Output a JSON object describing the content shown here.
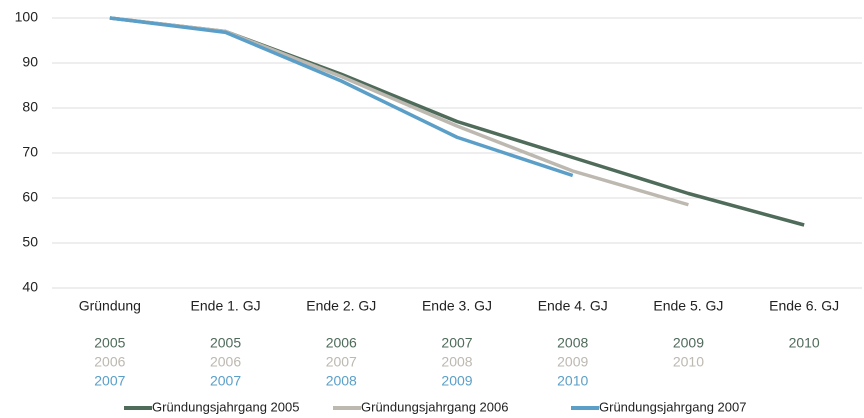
{
  "chart_data": {
    "type": "line",
    "categories": [
      "Gründung",
      "Ende 1. GJ",
      "Ende 2. GJ",
      "Ende 3. GJ",
      "Ende 4. GJ",
      "Ende 5. GJ",
      "Ende 6. GJ"
    ],
    "series": [
      {
        "name": "Gründungsjahrgang 2005",
        "color": "#4f6b5a",
        "values": [
          100,
          97,
          87.5,
          77,
          69,
          61,
          54
        ],
        "years": [
          2005,
          2005,
          2006,
          2007,
          2008,
          2009,
          2010
        ]
      },
      {
        "name": "Gründungsjahrgang 2006",
        "color": "#bdb8b0",
        "values": [
          100,
          97,
          87,
          76,
          66,
          58.5,
          null
        ],
        "years": [
          2006,
          2006,
          2007,
          2008,
          2009,
          2010,
          null
        ]
      },
      {
        "name": "Gründungsjahrgang 2007",
        "color": "#5b9fc8",
        "values": [
          100,
          96.8,
          86,
          73.5,
          65,
          null,
          null
        ],
        "years": [
          2007,
          2007,
          2008,
          2009,
          2010,
          null,
          null
        ]
      }
    ],
    "ylim": [
      40,
      100
    ],
    "yticks": [
      40,
      50,
      60,
      70,
      80,
      90,
      100
    ],
    "grid": true,
    "legend": "bottom"
  }
}
